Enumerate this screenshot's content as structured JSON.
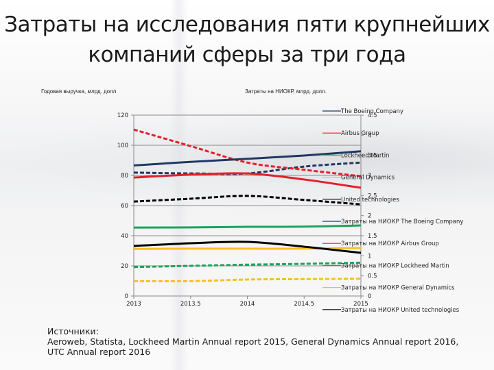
{
  "slide": {
    "title_line1": "Затраты на исследования пяти крупнейших",
    "title_line2": "компаний сферы за три года",
    "sources_heading": "Источники:",
    "sources_text": "Aeroweb, Statista, Lockheed Martin Annual report 2015, General Dynamics Annual report 2016, UTC Annual report 2016"
  },
  "axes": {
    "left_title": "Годовая выручка, млрд. долл",
    "right_title": "Затраты на НИОКР, млрд. долл.",
    "left_ticks": [
      "0",
      "20",
      "40",
      "60",
      "80",
      "100",
      "120"
    ],
    "right_ticks": [
      "0",
      "0.5",
      "1",
      "1.5",
      "2",
      "2.5",
      "3",
      "3.5",
      "4",
      "4.5"
    ],
    "x_ticks": [
      "2013",
      "2013.5",
      "2014",
      "2014.5",
      "2015"
    ]
  },
  "colors": {
    "boeing": "#1f3864",
    "airbus": "#e3202a",
    "lockheed": "#1aa35a",
    "general_dynamics": "#f5c020",
    "utc": "#000000",
    "grid": "#8a8a8a"
  },
  "chart_data": {
    "type": "line",
    "title": "Затраты на исследования пяти крупнейших компаний сферы за три года",
    "xlabel": "",
    "ylabel": "Годовая выручка, млрд. долл",
    "y2label": "Затраты на НИОКР, млрд. долл.",
    "x": [
      2013,
      2013.5,
      2014,
      2014.5,
      2015
    ],
    "xlim": [
      2013,
      2015
    ],
    "ylim": [
      0,
      120
    ],
    "y2lim": [
      0,
      4.5
    ],
    "grid": true,
    "legend_position": "right",
    "series": [
      {
        "name": "The Boeing Company",
        "axis": "left",
        "style": "solid",
        "color": "#1f3864",
        "values": [
          86.6,
          89.0,
          91.0,
          93.2,
          96.0
        ]
      },
      {
        "name": "Airbus Group",
        "axis": "left",
        "style": "solid",
        "color": "#e3202a",
        "values": [
          78.6,
          80.5,
          81.3,
          77.3,
          71.8
        ]
      },
      {
        "name": "Lockheed Martin",
        "axis": "left",
        "style": "solid",
        "color": "#1aa35a",
        "values": [
          45.4,
          45.5,
          45.9,
          46.0,
          46.8
        ]
      },
      {
        "name": "General Dynamics",
        "axis": "left",
        "style": "solid",
        "color": "#f5c020",
        "values": [
          31.2,
          31.4,
          31.4,
          31.4,
          31.8
        ]
      },
      {
        "name": "United technologies",
        "axis": "left",
        "style": "solid",
        "color": "#000000",
        "values": [
          33.2,
          35.0,
          35.9,
          32.7,
          28.6
        ]
      },
      {
        "name": "Затраты на НИОКР The Boeing Company",
        "axis": "right",
        "style": "dashed",
        "color": "#1f3864",
        "values": [
          3.07,
          3.05,
          3.05,
          3.22,
          3.32
        ]
      },
      {
        "name": "Затраты на НИОКР Airbus Group",
        "axis": "right",
        "style": "dashed",
        "color": "#e3202a",
        "values": [
          4.14,
          3.73,
          3.32,
          3.14,
          2.98
        ]
      },
      {
        "name": "Затраты на НИОКР Lockheed Martin",
        "axis": "right",
        "style": "dashed",
        "color": "#1aa35a",
        "values": [
          0.72,
          0.75,
          0.78,
          0.8,
          0.83
        ]
      },
      {
        "name": "Затраты на НИОКР General Dynamics",
        "axis": "right",
        "style": "dashed",
        "color": "#f5c020",
        "values": [
          0.37,
          0.37,
          0.41,
          0.42,
          0.43
        ]
      },
      {
        "name": "Затраты на НИОКР United technologies",
        "axis": "right",
        "style": "dashed",
        "color": "#000000",
        "values": [
          2.35,
          2.42,
          2.49,
          2.39,
          2.28
        ]
      }
    ]
  }
}
